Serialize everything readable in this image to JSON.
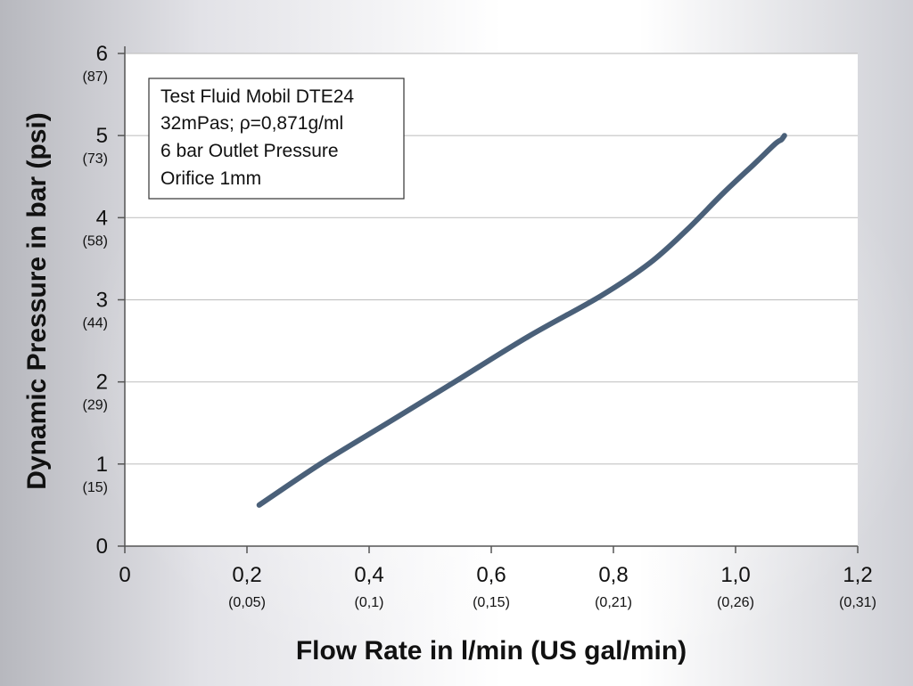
{
  "chart_data": {
    "type": "line",
    "title": "",
    "xlabel": "Flow Rate in l/min (US gal/min)",
    "ylabel": "Dynamic Pressure in bar (psi)",
    "xlim": [
      0,
      1.2
    ],
    "ylim": [
      0,
      6
    ],
    "grid": "horizontal",
    "x_ticks": [
      {
        "value": 0,
        "label": "0",
        "sublabel": ""
      },
      {
        "value": 0.2,
        "label": "0,2",
        "sublabel": "(0,05)"
      },
      {
        "value": 0.4,
        "label": "0,4",
        "sublabel": "(0,1)"
      },
      {
        "value": 0.6,
        "label": "0,6",
        "sublabel": "(0,15)"
      },
      {
        "value": 0.8,
        "label": "0,8",
        "sublabel": "(0,21)"
      },
      {
        "value": 1.0,
        "label": "1,0",
        "sublabel": "(0,26)"
      },
      {
        "value": 1.2,
        "label": "1,2",
        "sublabel": "(0,31)"
      }
    ],
    "y_ticks": [
      {
        "value": 0,
        "label": "0",
        "sublabel": ""
      },
      {
        "value": 1,
        "label": "1",
        "sublabel": "(15)"
      },
      {
        "value": 2,
        "label": "2",
        "sublabel": "(29)"
      },
      {
        "value": 3,
        "label": "3",
        "sublabel": "(44)"
      },
      {
        "value": 4,
        "label": "4",
        "sublabel": "(58)"
      },
      {
        "value": 5,
        "label": "5",
        "sublabel": "(73)"
      },
      {
        "value": 6,
        "label": "6",
        "sublabel": "(87)"
      }
    ],
    "annotation": [
      "Test Fluid Mobil DTE24",
      "32mPas; ρ=0,871g/ml",
      "6 bar Outlet Pressure",
      "Orifice 1mm"
    ],
    "series": [
      {
        "color": "#4a6079",
        "points": [
          [
            0.22,
            0.5
          ],
          [
            0.32,
            1.0
          ],
          [
            0.43,
            1.5
          ],
          [
            0.54,
            2.0
          ],
          [
            0.66,
            2.55
          ],
          [
            0.78,
            3.05
          ],
          [
            0.86,
            3.45
          ],
          [
            0.92,
            3.85
          ],
          [
            0.98,
            4.3
          ],
          [
            1.03,
            4.65
          ],
          [
            1.065,
            4.9
          ],
          [
            1.075,
            4.95
          ],
          [
            1.08,
            5.0
          ]
        ]
      }
    ]
  }
}
